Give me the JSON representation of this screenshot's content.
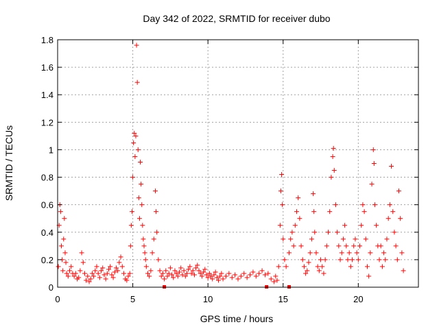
{
  "chart_data": {
    "type": "scatter",
    "title": "Day 342 of 2022, SRMTID for receiver dubo",
    "xlabel": "GPS time / hours",
    "ylabel": "SRMTID / TECUs",
    "xlim": [
      0,
      24
    ],
    "ylim": [
      0,
      1.8
    ],
    "xticks": [
      "0",
      "5",
      "10",
      "15",
      "20"
    ],
    "yticks": [
      "0",
      "0.2",
      "0.4",
      "0.6",
      "0.8",
      "1",
      "1.2",
      "1.4",
      "1.6",
      "1.8"
    ],
    "grid": true,
    "marker": "+",
    "color": "#ff0000",
    "series": [
      {
        "name": "SRMTID",
        "points": [
          [
            0.05,
            0.15
          ],
          [
            0.1,
            0.45
          ],
          [
            0.15,
            0.6
          ],
          [
            0.2,
            0.55
          ],
          [
            0.25,
            0.3
          ],
          [
            0.3,
            0.2
          ],
          [
            0.35,
            0.12
          ],
          [
            0.4,
            0.35
          ],
          [
            0.45,
            0.5
          ],
          [
            0.5,
            0.25
          ],
          [
            0.55,
            0.18
          ],
          [
            0.6,
            0.1
          ],
          [
            0.7,
            0.08
          ],
          [
            0.8,
            0.12
          ],
          [
            0.9,
            0.15
          ],
          [
            1.0,
            0.1
          ],
          [
            1.1,
            0.08
          ],
          [
            1.2,
            0.1
          ],
          [
            1.3,
            0.06
          ],
          [
            1.4,
            0.07
          ],
          [
            1.5,
            0.12
          ],
          [
            1.6,
            0.25
          ],
          [
            1.7,
            0.18
          ],
          [
            1.8,
            0.1
          ],
          [
            1.9,
            0.05
          ],
          [
            2.0,
            0.08
          ],
          [
            2.1,
            0.04
          ],
          [
            2.2,
            0.06
          ],
          [
            2.3,
            0.1
          ],
          [
            2.4,
            0.08
          ],
          [
            2.5,
            0.12
          ],
          [
            2.6,
            0.15
          ],
          [
            2.7,
            0.1
          ],
          [
            2.8,
            0.07
          ],
          [
            2.9,
            0.12
          ],
          [
            3.0,
            0.14
          ],
          [
            3.1,
            0.09
          ],
          [
            3.2,
            0.06
          ],
          [
            3.3,
            0.1
          ],
          [
            3.4,
            0.13
          ],
          [
            3.5,
            0.15
          ],
          [
            3.6,
            0.09
          ],
          [
            3.7,
            0.07
          ],
          [
            3.8,
            0.11
          ],
          [
            3.9,
            0.14
          ],
          [
            4.0,
            0.12
          ],
          [
            4.1,
            0.18
          ],
          [
            4.2,
            0.22
          ],
          [
            4.3,
            0.15
          ],
          [
            4.4,
            0.1
          ],
          [
            4.5,
            0.06
          ],
          [
            4.6,
            0.05
          ],
          [
            4.7,
            0.08
          ],
          [
            4.8,
            0.1
          ],
          [
            4.85,
            0.3
          ],
          [
            4.9,
            0.45
          ],
          [
            4.95,
            0.55
          ],
          [
            5.0,
            0.8
          ],
          [
            5.05,
            1.05
          ],
          [
            5.1,
            1.12
          ],
          [
            5.15,
            0.95
          ],
          [
            5.2,
            1.1
          ],
          [
            5.25,
            1.76
          ],
          [
            5.3,
            1.49
          ],
          [
            5.35,
            1.0
          ],
          [
            5.4,
            0.65
          ],
          [
            5.45,
            0.5
          ],
          [
            5.5,
            0.91
          ],
          [
            5.55,
            0.75
          ],
          [
            5.6,
            0.6
          ],
          [
            5.65,
            0.45
          ],
          [
            5.7,
            0.35
          ],
          [
            5.75,
            0.3
          ],
          [
            5.8,
            0.25
          ],
          [
            5.85,
            0.2
          ],
          [
            5.9,
            0.15
          ],
          [
            6.0,
            0.1
          ],
          [
            6.1,
            0.08
          ],
          [
            6.2,
            0.12
          ],
          [
            6.3,
            0.25
          ],
          [
            6.4,
            0.35
          ],
          [
            6.5,
            0.7
          ],
          [
            6.55,
            0.55
          ],
          [
            6.6,
            0.4
          ],
          [
            6.7,
            0.2
          ],
          [
            6.8,
            0.12
          ],
          [
            6.9,
            0.08
          ],
          [
            7.0,
            0.1
          ],
          [
            7.1,
            0.06
          ],
          [
            7.2,
            0.12
          ],
          [
            7.3,
            0.08
          ],
          [
            7.4,
            0.1
          ],
          [
            7.5,
            0.14
          ],
          [
            7.6,
            0.09
          ],
          [
            7.7,
            0.07
          ],
          [
            7.8,
            0.12
          ],
          [
            7.9,
            0.1
          ],
          [
            8.0,
            0.08
          ],
          [
            8.1,
            0.11
          ],
          [
            8.2,
            0.14
          ],
          [
            8.3,
            0.09
          ],
          [
            8.4,
            0.12
          ],
          [
            8.5,
            0.08
          ],
          [
            8.6,
            0.1
          ],
          [
            8.7,
            0.13
          ],
          [
            8.8,
            0.15
          ],
          [
            8.9,
            0.1
          ],
          [
            9.0,
            0.12
          ],
          [
            9.1,
            0.09
          ],
          [
            9.2,
            0.14
          ],
          [
            9.3,
            0.16
          ],
          [
            9.4,
            0.12
          ],
          [
            9.5,
            0.1
          ],
          [
            9.6,
            0.08
          ],
          [
            9.7,
            0.11
          ],
          [
            9.8,
            0.13
          ],
          [
            9.9,
            0.09
          ],
          [
            10.0,
            0.07
          ],
          [
            10.1,
            0.1
          ],
          [
            10.2,
            0.08
          ],
          [
            10.3,
            0.06
          ],
          [
            10.4,
            0.09
          ],
          [
            10.5,
            0.11
          ],
          [
            10.6,
            0.07
          ],
          [
            10.7,
            0.05
          ],
          [
            10.8,
            0.08
          ],
          [
            10.9,
            0.1
          ],
          [
            11.0,
            0.06
          ],
          [
            11.2,
            0.08
          ],
          [
            11.4,
            0.1
          ],
          [
            11.6,
            0.07
          ],
          [
            11.8,
            0.09
          ],
          [
            12.0,
            0.06
          ],
          [
            12.2,
            0.08
          ],
          [
            12.4,
            0.1
          ],
          [
            12.6,
            0.07
          ],
          [
            12.8,
            0.09
          ],
          [
            13.0,
            0.11
          ],
          [
            13.2,
            0.08
          ],
          [
            13.4,
            0.1
          ],
          [
            13.6,
            0.12
          ],
          [
            13.8,
            0.09
          ],
          [
            14.0,
            0.1
          ],
          [
            14.2,
            0.06
          ],
          [
            14.4,
            0.04
          ],
          [
            14.5,
            0.08
          ],
          [
            14.6,
            0.05
          ],
          [
            14.7,
            0.15
          ],
          [
            14.8,
            0.45
          ],
          [
            14.85,
            0.7
          ],
          [
            14.9,
            0.82
          ],
          [
            14.95,
            0.6
          ],
          [
            15.0,
            0.35
          ],
          [
            15.1,
            0.2
          ],
          [
            15.2,
            0.15
          ],
          [
            15.4,
            0.25
          ],
          [
            15.5,
            0.35
          ],
          [
            15.6,
            0.4
          ],
          [
            15.7,
            0.3
          ],
          [
            15.8,
            0.45
          ],
          [
            15.9,
            0.55
          ],
          [
            16.0,
            0.65
          ],
          [
            16.1,
            0.5
          ],
          [
            16.2,
            0.3
          ],
          [
            16.3,
            0.2
          ],
          [
            16.4,
            0.15
          ],
          [
            16.5,
            0.1
          ],
          [
            16.6,
            0.12
          ],
          [
            16.7,
            0.18
          ],
          [
            16.8,
            0.25
          ],
          [
            16.9,
            0.35
          ],
          [
            17.0,
            0.68
          ],
          [
            17.05,
            0.55
          ],
          [
            17.1,
            0.4
          ],
          [
            17.2,
            0.25
          ],
          [
            17.3,
            0.15
          ],
          [
            17.4,
            0.12
          ],
          [
            17.5,
            0.2
          ],
          [
            17.6,
            0.15
          ],
          [
            17.7,
            0.1
          ],
          [
            17.8,
            0.2
          ],
          [
            17.9,
            0.3
          ],
          [
            18.0,
            0.4
          ],
          [
            18.1,
            0.55
          ],
          [
            18.2,
            0.8
          ],
          [
            18.3,
            0.95
          ],
          [
            18.35,
            1.01
          ],
          [
            18.4,
            0.85
          ],
          [
            18.5,
            0.6
          ],
          [
            18.6,
            0.4
          ],
          [
            18.7,
            0.3
          ],
          [
            18.8,
            0.2
          ],
          [
            18.9,
            0.25
          ],
          [
            19.0,
            0.35
          ],
          [
            19.1,
            0.45
          ],
          [
            19.2,
            0.3
          ],
          [
            19.3,
            0.2
          ],
          [
            19.4,
            0.25
          ],
          [
            19.5,
            0.15
          ],
          [
            19.6,
            0.2
          ],
          [
            19.7,
            0.3
          ],
          [
            19.8,
            0.35
          ],
          [
            19.9,
            0.25
          ],
          [
            20.0,
            0.2
          ],
          [
            20.1,
            0.3
          ],
          [
            20.2,
            0.45
          ],
          [
            20.3,
            0.6
          ],
          [
            20.4,
            0.55
          ],
          [
            20.5,
            0.35
          ],
          [
            20.6,
            0.15
          ],
          [
            20.7,
            0.08
          ],
          [
            20.8,
            0.25
          ],
          [
            20.9,
            0.75
          ],
          [
            21.0,
            1.0
          ],
          [
            21.05,
            0.9
          ],
          [
            21.1,
            0.6
          ],
          [
            21.2,
            0.45
          ],
          [
            21.3,
            0.3
          ],
          [
            21.4,
            0.2
          ],
          [
            21.5,
            0.3
          ],
          [
            21.6,
            0.15
          ],
          [
            21.7,
            0.25
          ],
          [
            21.8,
            0.2
          ],
          [
            21.9,
            0.35
          ],
          [
            22.0,
            0.5
          ],
          [
            22.1,
            0.6
          ],
          [
            22.2,
            0.88
          ],
          [
            22.3,
            0.55
          ],
          [
            22.4,
            0.4
          ],
          [
            22.5,
            0.3
          ],
          [
            22.6,
            0.2
          ],
          [
            22.7,
            0.7
          ],
          [
            22.8,
            0.5
          ],
          [
            22.9,
            0.25
          ],
          [
            23.0,
            0.12
          ]
        ]
      }
    ],
    "gap_markers_x": [
      7.1,
      13.9,
      15.4
    ]
  }
}
